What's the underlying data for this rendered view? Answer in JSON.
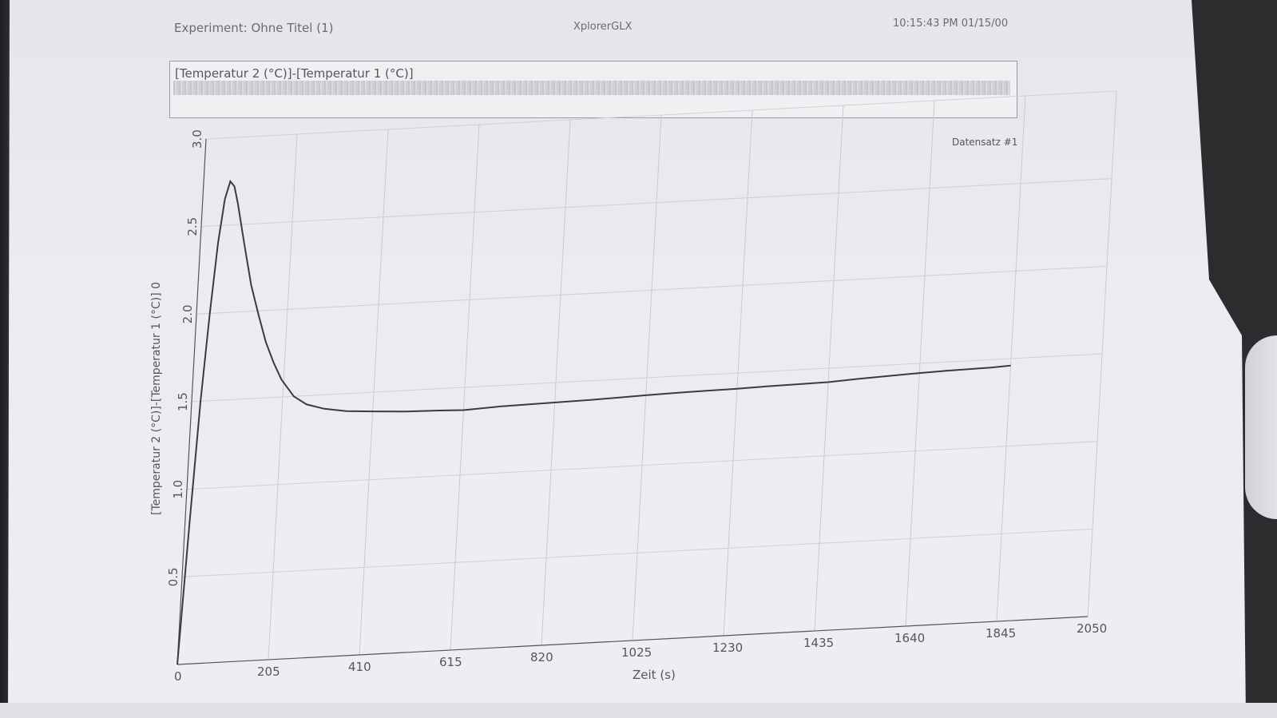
{
  "header": {
    "experiment": "Experiment: Ohne Titel (1)",
    "app": "XplorerGLX",
    "timestamp": "10:15:43 PM 01/15/00"
  },
  "expression_label": "[Temperatur 2 (°C)]-[Temperatur 1 (°C)]",
  "chart_data": {
    "type": "line",
    "legend": "Datensatz #1",
    "xlabel": "Zeit (s)",
    "ylabel": "[Temperatur 2 (°C)]-[Temperatur 1 (°C)] 0",
    "xlim": [
      0,
      2050
    ],
    "ylim": [
      0,
      3.0
    ],
    "x_ticks": [
      "0",
      "205",
      "410",
      "615",
      "820",
      "1025",
      "1230",
      "1435",
      "1640",
      "1845",
      "2050"
    ],
    "y_ticks": [
      "0.5",
      "1.0",
      "1.5",
      "2.0",
      "2.5",
      "3.0"
    ],
    "grid": true,
    "series": [
      {
        "values_x": [
          0,
          10,
          20,
          30,
          40,
          50,
          60,
          70,
          80,
          90,
          100,
          120,
          140,
          160,
          180,
          200,
          230,
          260,
          300,
          350,
          410,
          480,
          560,
          615,
          700,
          800,
          900,
          1025,
          1100,
          1230,
          1300,
          1435,
          1500,
          1640,
          1700,
          1800,
          1845
        ],
        "values_y": [
          0.0,
          0.8,
          1.5,
          2.0,
          2.4,
          2.65,
          2.75,
          2.72,
          2.62,
          2.5,
          2.38,
          2.15,
          1.98,
          1.82,
          1.7,
          1.6,
          1.5,
          1.45,
          1.42,
          1.4,
          1.39,
          1.38,
          1.375,
          1.37,
          1.38,
          1.385,
          1.39,
          1.4,
          1.405,
          1.41,
          1.415,
          1.42,
          1.43,
          1.445,
          1.45,
          1.455,
          1.46
        ]
      }
    ]
  }
}
